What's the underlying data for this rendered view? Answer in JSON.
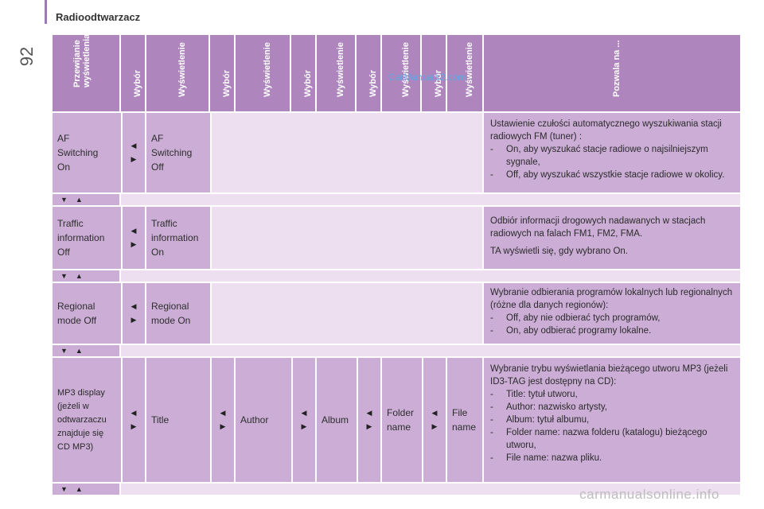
{
  "page": {
    "number": "92",
    "title": "Radioodtwarzacz"
  },
  "watermark": "CarManuals2.com",
  "footer": "carmanualsonline.info",
  "headers": [
    "Przewijanie wyświetlenia",
    "Wybór",
    "Wyświetlenie",
    "Wybór",
    "Wyświetlenie",
    "Wybór",
    "Wyświetlenie",
    "Wybór",
    "Wyświetlenie",
    "Wybór",
    "Wyświetlenie",
    "Pozwala na ..."
  ],
  "icons": {
    "left": "triangle-left-icon",
    "right": "triangle-right-icon",
    "down": "triangle-down-icon",
    "up": "triangle-up-icon"
  },
  "colors": {
    "header": "#ae85bc",
    "cell": "#cbadd6",
    "light": "#eddff0",
    "accent": "#9a7ab4"
  },
  "rows": [
    {
      "option": "AF\nSwitching\nOn",
      "display1": "AF\nSwitching\nOff",
      "intro": "Ustawienie czułości automatycznego wyszukiwania stacji radiowych FM (tuner) :",
      "bullets": [
        "On, aby wyszukać stacje radiowe o najsilniejszym sygnale,",
        "Off, aby wyszukać wszystkie stacje radiowe w okolicy."
      ]
    },
    {
      "option": "Traffic\ninformation\nOff",
      "display1": "Traffic\ninformation\nOn",
      "intro": "Odbiór informacji drogowych nadawanych w stacjach radiowych na falach FM1, FM2, FMA.",
      "intro2": "TA wyświetli się, gdy wybrano On."
    },
    {
      "option": "Regional\nmode Off",
      "display1": "Regional\nmode On",
      "intro": "Wybranie odbierania programów lokalnych lub regionalnych (różne dla danych regionów):",
      "bullets": [
        "Off, aby nie odbierać tych programów,",
        "On, aby odbierać programy lokalne."
      ]
    },
    {
      "option": "MP3 display\n(jeżeli w\nodtwarzaczu\nznajduje się\nCD MP3)",
      "display1": "Title",
      "display2": "Author",
      "display3": "Album",
      "display4": "Folder\nname",
      "display5": "File\nname",
      "intro": "Wybranie trybu wyświetlania bieżącego utworu MP3 (jeżeli ID3-TAG jest dostępny na CD):",
      "bullets": [
        "Title: tytuł utworu,",
        "Author: nazwisko artysty,",
        "Album: tytuł albumu,",
        "Folder name: nazwa folderu (katalogu) bieżącego utworu,",
        "File name: nazwa pliku."
      ]
    }
  ]
}
